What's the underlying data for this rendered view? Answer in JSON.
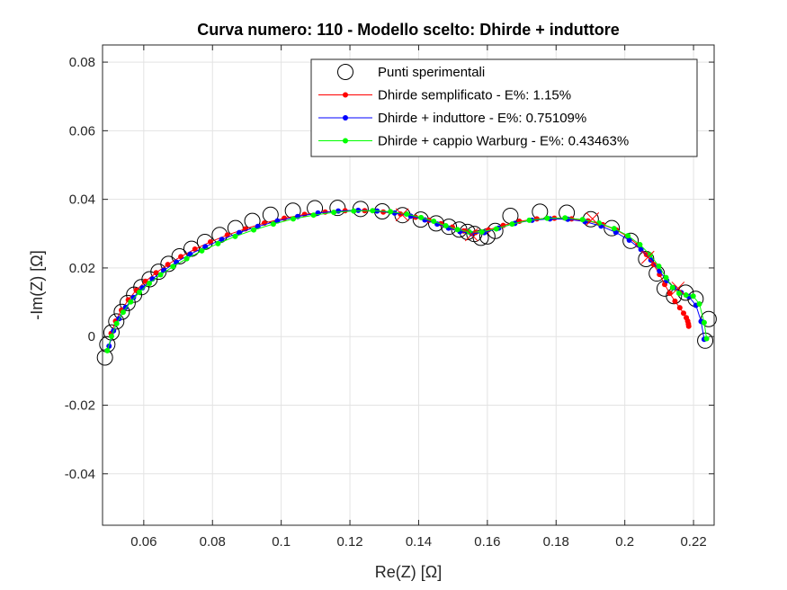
{
  "chart_data": {
    "type": "scatter",
    "title": "Curva numero: 110 - Modello scelto: Dhirde + induttore",
    "xlabel": "Re(Z) [Ω]",
    "ylabel": "-Im(Z) [Ω]",
    "xlim": [
      0.048,
      0.226
    ],
    "ylim": [
      -0.055,
      0.085
    ],
    "xticks": [
      0.06,
      0.08,
      0.1,
      0.12,
      0.14,
      0.16,
      0.18,
      0.2,
      0.22
    ],
    "xtick_labels": [
      "0.06",
      "0.08",
      "0.1",
      "0.12",
      "0.14",
      "0.16",
      "0.18",
      "0.2",
      "0.22"
    ],
    "yticks": [
      -0.04,
      -0.02,
      0,
      0.02,
      0.04,
      0.06,
      0.08
    ],
    "ytick_labels": [
      "-0.04",
      "-0.02",
      "0",
      "0.02",
      "0.04",
      "0.06",
      "0.08"
    ],
    "grid": true,
    "legend_position": "top-right",
    "series": [
      {
        "name": "Punti sperimentali",
        "style": "markers",
        "color": "#000000",
        "x": [
          0.0487,
          0.0494,
          0.0506,
          0.052,
          0.0536,
          0.0553,
          0.0572,
          0.0593,
          0.0617,
          0.0643,
          0.0672,
          0.0704,
          0.0739,
          0.0778,
          0.0821,
          0.0867,
          0.0916,
          0.0969,
          0.1034,
          0.1098,
          0.1164,
          0.1231,
          0.1294,
          0.1353,
          0.1406,
          0.1451,
          0.1488,
          0.1518,
          0.1542,
          0.1562,
          0.1581,
          0.16,
          0.1623,
          0.1667,
          0.1753,
          0.1831,
          0.1901,
          0.1962,
          0.2017,
          0.2062,
          0.2093,
          0.2116,
          0.2143,
          0.2177,
          0.2206,
          0.2234,
          0.2244
        ],
        "y": [
          -0.0061,
          -0.0023,
          0.0012,
          0.0044,
          0.0072,
          0.0098,
          0.0122,
          0.0144,
          0.0167,
          0.0189,
          0.0212,
          0.0234,
          0.0256,
          0.0276,
          0.0296,
          0.0316,
          0.0337,
          0.0355,
          0.0367,
          0.0374,
          0.0375,
          0.0372,
          0.0365,
          0.0354,
          0.0341,
          0.033,
          0.032,
          0.0312,
          0.0305,
          0.0299,
          0.0288,
          0.0292,
          0.0308,
          0.0352,
          0.0364,
          0.0361,
          0.0342,
          0.0316,
          0.0279,
          0.0226,
          0.0184,
          0.014,
          0.0118,
          0.0128,
          0.011,
          -0.0012,
          0.0051
        ]
      },
      {
        "name": "Dhirde semplificato - E%: 1.15%",
        "style": "line-markers",
        "color": "#ff0000",
        "x": [
          0.0505,
          0.0518,
          0.0535,
          0.0555,
          0.0578,
          0.0605,
          0.0636,
          0.067,
          0.0708,
          0.0749,
          0.0794,
          0.0843,
          0.0896,
          0.0951,
          0.1009,
          0.1068,
          0.1128,
          0.1186,
          0.1243,
          0.1297,
          0.1347,
          0.1391,
          0.143,
          0.1465,
          0.1498,
          0.1531,
          0.1565,
          0.1603,
          0.1646,
          0.1693,
          0.1744,
          0.1795,
          0.1845,
          0.1893,
          0.1936,
          0.1975,
          0.2009,
          0.2038,
          0.2063,
          0.2084,
          0.2101,
          0.2116,
          0.2131,
          0.2146,
          0.216,
          0.2171,
          0.2179,
          0.2183,
          0.2185,
          0.2186
        ],
        "y": [
          0.0009,
          0.0045,
          0.0077,
          0.0107,
          0.0135,
          0.0161,
          0.0186,
          0.021,
          0.0233,
          0.0255,
          0.0276,
          0.0296,
          0.0314,
          0.0331,
          0.0345,
          0.0356,
          0.0363,
          0.0367,
          0.0367,
          0.0363,
          0.0357,
          0.0348,
          0.0339,
          0.0329,
          0.0319,
          0.0308,
          0.0303,
          0.0311,
          0.0324,
          0.0336,
          0.0343,
          0.0345,
          0.0343,
          0.0337,
          0.0326,
          0.0311,
          0.0291,
          0.0267,
          0.0239,
          0.021,
          0.0181,
          0.0152,
          0.0126,
          0.0103,
          0.0084,
          0.0068,
          0.0055,
          0.0045,
          0.0037,
          0.003
        ]
      },
      {
        "name": "Dhirde + induttore - E%: 0.75109%",
        "style": "line-markers",
        "color": "#0000ff",
        "x": [
          0.0499,
          0.0512,
          0.0528,
          0.0547,
          0.057,
          0.0596,
          0.0625,
          0.0658,
          0.0695,
          0.0735,
          0.0779,
          0.0827,
          0.0878,
          0.0932,
          0.0989,
          0.1048,
          0.1107,
          0.1166,
          0.1224,
          0.1279,
          0.133,
          0.1377,
          0.1418,
          0.1454,
          0.1487,
          0.152,
          0.1554,
          0.1591,
          0.1633,
          0.168,
          0.173,
          0.1782,
          0.1834,
          0.1884,
          0.1931,
          0.1974,
          0.2013,
          0.2047,
          0.2076,
          0.2101,
          0.2122,
          0.2143,
          0.2164,
          0.2186,
          0.2207,
          0.2222,
          0.2231
        ],
        "y": [
          -0.0028,
          0.0017,
          0.0052,
          0.0085,
          0.0114,
          0.0142,
          0.0168,
          0.0193,
          0.0217,
          0.024,
          0.0262,
          0.0283,
          0.0303,
          0.0321,
          0.0337,
          0.035,
          0.036,
          0.0366,
          0.0368,
          0.0366,
          0.036,
          0.0351,
          0.034,
          0.0328,
          0.0316,
          0.0306,
          0.03,
          0.0303,
          0.0316,
          0.033,
          0.0339,
          0.0343,
          0.0342,
          0.0335,
          0.0322,
          0.0304,
          0.0281,
          0.0254,
          0.0223,
          0.0191,
          0.0163,
          0.0142,
          0.0128,
          0.0117,
          0.0091,
          0.0044,
          -0.0008
        ]
      },
      {
        "name": "Dhirde + cappio Warburg - E%: 0.43463%",
        "style": "line-markers",
        "color": "#00ff00",
        "x": [
          0.0494,
          0.0506,
          0.0521,
          0.054,
          0.0562,
          0.0587,
          0.0616,
          0.0649,
          0.0685,
          0.0725,
          0.0769,
          0.0816,
          0.0866,
          0.092,
          0.0977,
          0.1035,
          0.1094,
          0.1153,
          0.1211,
          0.1266,
          0.1318,
          0.1365,
          0.1407,
          0.1444,
          0.1479,
          0.1513,
          0.1547,
          0.1584,
          0.1626,
          0.1672,
          0.1722,
          0.1774,
          0.1826,
          0.1877,
          0.1925,
          0.1969,
          0.2009,
          0.2044,
          0.2074,
          0.2099,
          0.212,
          0.2139,
          0.2158,
          0.2178,
          0.2199,
          0.2217,
          0.2231,
          0.2238
        ],
        "y": [
          -0.0041,
          0.0001,
          0.0038,
          0.0071,
          0.0101,
          0.0129,
          0.0155,
          0.018,
          0.0204,
          0.0227,
          0.025,
          0.0271,
          0.0292,
          0.0311,
          0.0328,
          0.0343,
          0.0354,
          0.0362,
          0.0366,
          0.0367,
          0.0364,
          0.0357,
          0.0347,
          0.0336,
          0.0323,
          0.0312,
          0.0305,
          0.0305,
          0.0314,
          0.0328,
          0.0339,
          0.0345,
          0.0346,
          0.0341,
          0.0331,
          0.0315,
          0.0294,
          0.0268,
          0.0238,
          0.0205,
          0.0172,
          0.0143,
          0.0126,
          0.0121,
          0.0118,
          0.0095,
          0.0041,
          -0.0006
        ]
      }
    ],
    "annotations": {
      "x_markers_color": "#ff0000",
      "x_markers": [
        {
          "x": 0.1352,
          "y": 0.0355
        },
        {
          "x": 0.1554,
          "y": 0.0297
        },
        {
          "x": 0.1906,
          "y": 0.0343
        },
        {
          "x": 0.2067,
          "y": 0.0231
        },
        {
          "x": 0.2155,
          "y": 0.0141
        }
      ]
    }
  }
}
